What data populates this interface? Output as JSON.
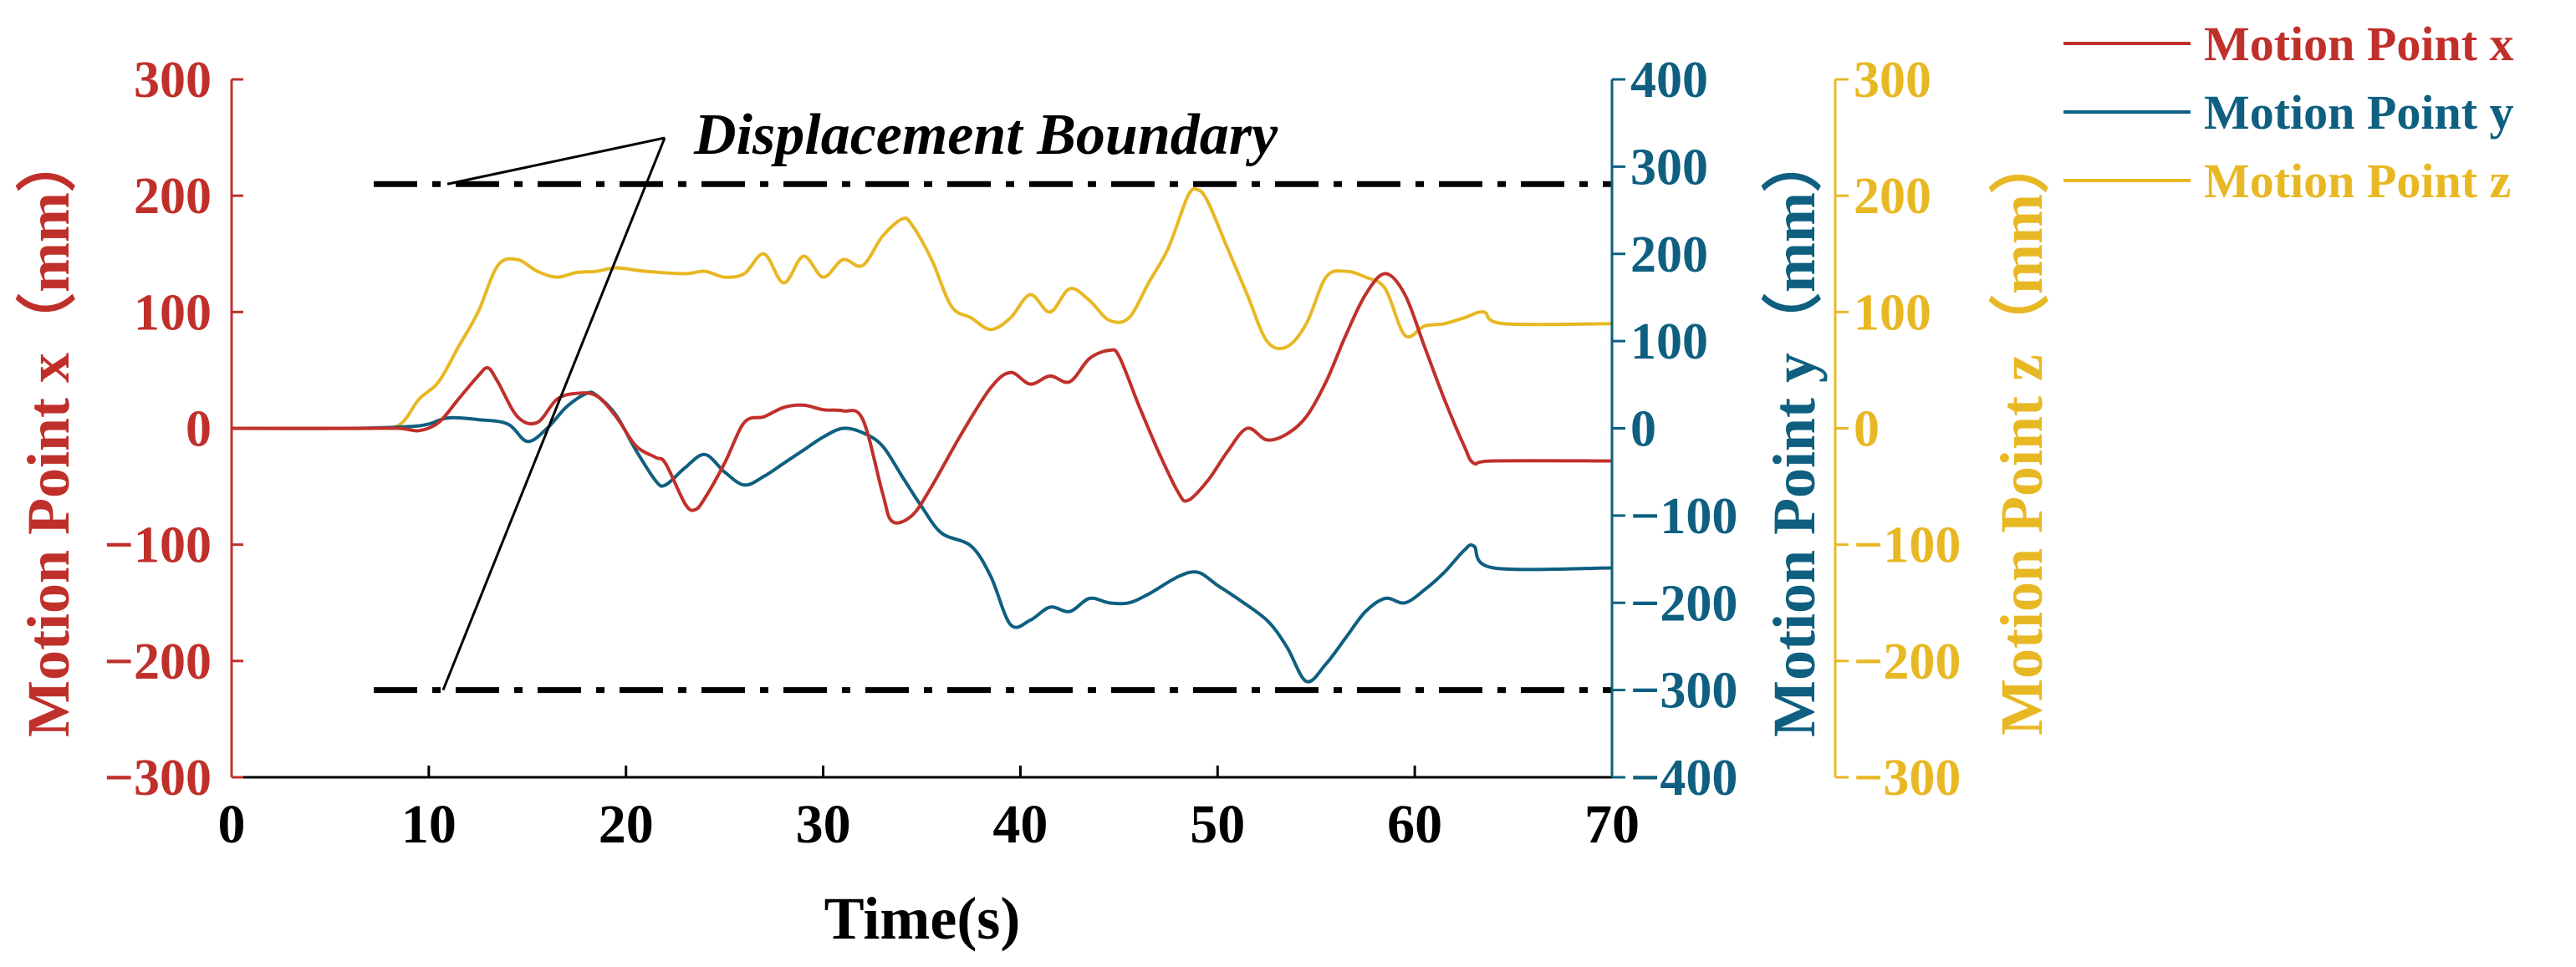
{
  "chart_data": {
    "type": "line",
    "xlabel": "Time(s)",
    "xlim": [
      0,
      70
    ],
    "xticks": [
      "0",
      "10",
      "20",
      "30",
      "40",
      "50",
      "60",
      "70"
    ],
    "axes": {
      "left": {
        "label": "Motion Point x（mm）",
        "ylim": [
          -300,
          300
        ],
        "ticks": [
          "300",
          "200",
          "100",
          "0",
          "−100",
          "−200",
          "−300"
        ],
        "color": "#C0302B"
      },
      "right1": {
        "label": "Motion Point y（mm）",
        "ylim": [
          -400,
          400
        ],
        "ticks": [
          "400",
          "300",
          "200",
          "100",
          "0",
          "−100",
          "−200",
          "−300",
          "−400"
        ],
        "color": "#0E5F80"
      },
      "right2": {
        "label": "Motion Point z（mm）",
        "ylim": [
          -300,
          300
        ],
        "ticks": [
          "300",
          "200",
          "100",
          "0",
          "−100",
          "−200",
          "−300"
        ],
        "color": "#E8B824"
      }
    },
    "annotation": "Displacement Boundary",
    "boundary": {
      "upper": 210,
      "lower": -225,
      "units": "Motion Point x (mm)"
    },
    "series": [
      {
        "name": "Motion Point x",
        "axis": "left",
        "color": "#C0302B",
        "x": [
          0,
          6,
          8.5,
          9.5,
          10.5,
          11.5,
          12.5,
          13,
          13.5,
          14.5,
          15.5,
          16.5,
          17.5,
          18.5,
          19.5,
          20.5,
          21.5,
          22,
          23,
          23.5,
          24,
          25,
          26,
          27,
          28,
          29,
          30,
          31,
          32,
          33,
          33.5,
          34.5,
          35.5,
          37,
          38.5,
          39.5,
          40.5,
          41.5,
          42.5,
          43.5,
          44.5,
          45,
          46,
          47,
          48,
          48.5,
          49.5,
          50.5,
          51.5,
          52.5,
          53.5,
          54.5,
          55.5,
          56.5,
          57.5,
          58.5,
          59.5,
          60.5,
          61.5,
          62.5,
          63,
          64,
          70
        ],
        "values": [
          0,
          0,
          0,
          -2,
          5,
          25,
          45,
          52,
          40,
          10,
          5,
          25,
          30,
          28,
          10,
          -15,
          -25,
          -30,
          -65,
          -70,
          -60,
          -30,
          5,
          10,
          18,
          20,
          16,
          15,
          8,
          -55,
          -80,
          -75,
          -50,
          -5,
          35,
          48,
          38,
          45,
          40,
          60,
          67,
          62,
          20,
          -20,
          -55,
          -62,
          -45,
          -20,
          0,
          -10,
          -5,
          10,
          40,
          80,
          115,
          133,
          115,
          70,
          25,
          -15,
          -30,
          -28,
          -28
        ]
      },
      {
        "name": "Motion Point y",
        "axis": "right1",
        "color": "#0E5F80",
        "x": [
          0,
          6,
          9,
          10,
          11,
          12.5,
          14,
          15,
          16,
          17,
          18,
          18.5,
          19.5,
          20.5,
          21.5,
          22,
          23,
          24,
          25,
          26,
          27,
          28,
          29,
          30,
          31,
          32,
          33,
          34,
          35,
          36,
          37.5,
          38.5,
          39.5,
          40.5,
          41.5,
          42.5,
          43.5,
          44.5,
          45.5,
          46.5,
          48,
          49,
          50,
          51,
          52.5,
          53.5,
          54.5,
          55.5,
          56.5,
          57.5,
          58.5,
          59.5,
          60.5,
          61.5,
          62.5,
          63,
          64,
          70
        ],
        "values": [
          0,
          0,
          2,
          5,
          12,
          10,
          5,
          -15,
          0,
          25,
          40,
          38,
          15,
          -25,
          -60,
          -65,
          -45,
          -30,
          -50,
          -65,
          -55,
          -40,
          -25,
          -10,
          0,
          -5,
          -20,
          -55,
          -90,
          -120,
          -135,
          -170,
          -225,
          -220,
          -205,
          -210,
          -195,
          -200,
          -200,
          -190,
          -170,
          -165,
          -180,
          -195,
          -220,
          -250,
          -290,
          -270,
          -240,
          -210,
          -195,
          -200,
          -185,
          -165,
          -140,
          -135,
          -160,
          -160
        ]
      },
      {
        "name": "Motion Point z",
        "axis": "right2",
        "color": "#E8B824",
        "x": [
          0,
          7,
          8.5,
          9.5,
          10.5,
          11.5,
          12.5,
          13.5,
          14.5,
          15.5,
          16.5,
          17.5,
          18.5,
          19.5,
          21,
          23,
          24,
          25,
          26,
          27,
          28,
          29,
          30,
          31,
          32,
          33,
          34,
          34.5,
          35.5,
          36.5,
          37.5,
          38.5,
          39.5,
          40.5,
          41.5,
          42.5,
          43.5,
          44.5,
          45.5,
          46.5,
          47.5,
          48.5,
          49,
          49.5,
          50.5,
          51.5,
          52.5,
          53.5,
          54.5,
          55.5,
          56.5,
          57.5,
          58.5,
          59.5,
          60.5,
          61.5,
          62.5,
          63.5,
          64.5,
          70
        ],
        "values": [
          0,
          0,
          3,
          25,
          40,
          70,
          100,
          140,
          145,
          135,
          130,
          134,
          135,
          138,
          135,
          133,
          135,
          130,
          133,
          150,
          125,
          148,
          130,
          145,
          140,
          165,
          180,
          175,
          145,
          105,
          95,
          85,
          95,
          115,
          100,
          120,
          110,
          93,
          95,
          125,
          155,
          200,
          205,
          195,
          155,
          115,
          75,
          70,
          90,
          130,
          135,
          130,
          120,
          80,
          88,
          90,
          95,
          100,
          90,
          90
        ]
      }
    ]
  }
}
